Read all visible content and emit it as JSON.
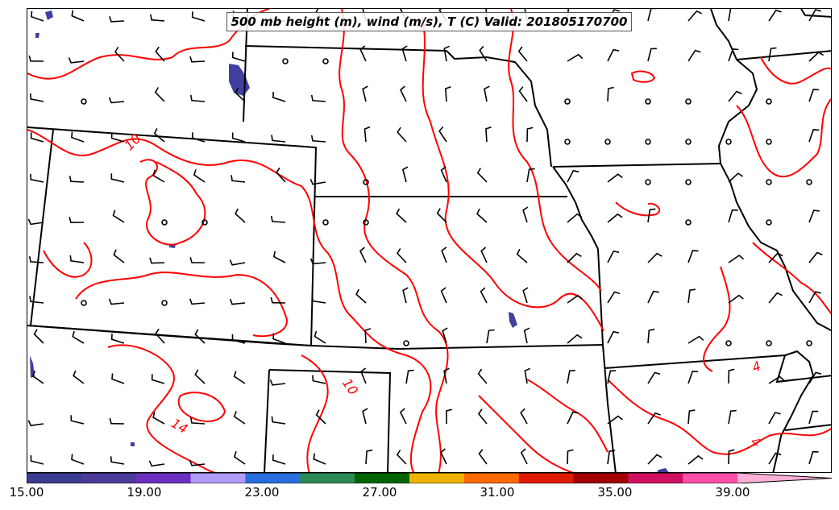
{
  "title": "500 mb height (m), wind (m/s), T (C) Valid: 201805170700",
  "contour_labels": [
    "10",
    "10",
    "14",
    "4",
    "4"
  ],
  "contour_color": "#ff0000",
  "boundary_color": "#000000",
  "shade_color": "#3f3f9f",
  "colorbar": {
    "bins": [
      {
        "from": 15,
        "to": 17,
        "color": "#3b3b8f"
      },
      {
        "from": 17,
        "to": 19,
        "color": "#4a3a9a"
      },
      {
        "from": 19,
        "to": 21,
        "color": "#6b2fbf"
      },
      {
        "from": 21,
        "to": 23,
        "color": "#b09cff"
      },
      {
        "from": 23,
        "to": 25,
        "color": "#2a6fe0"
      },
      {
        "from": 25,
        "to": 27,
        "color": "#2e8b57"
      },
      {
        "from": 27,
        "to": 29,
        "color": "#006400"
      },
      {
        "from": 29,
        "to": 31,
        "color": "#f0b400"
      },
      {
        "from": 31,
        "to": 33,
        "color": "#ff6a00"
      },
      {
        "from": 33,
        "to": 35,
        "color": "#e01a00"
      },
      {
        "from": 35,
        "to": 37,
        "color": "#a00000"
      },
      {
        "from": 37,
        "to": 39,
        "color": "#d01060"
      },
      {
        "from": 39,
        "to": 41,
        "color": "#ff50a8"
      },
      {
        "from": 41,
        "to": 43,
        "color": "#ffb0d8"
      }
    ],
    "ticks": [
      "15.00",
      "19.00",
      "23.00",
      "27.00",
      "31.00",
      "35.00",
      "39.00"
    ]
  }
}
